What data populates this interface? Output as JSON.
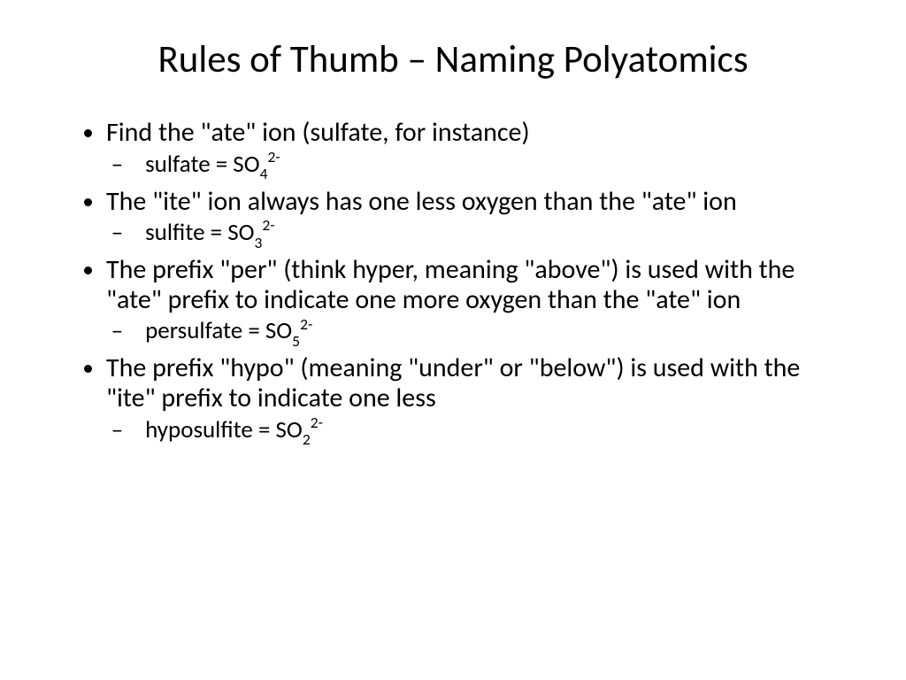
{
  "colors": {
    "background": "#ffffff",
    "text": "#000000"
  },
  "typography": {
    "family": "Calibri",
    "title_fontsize": 43,
    "body_fontsize": 30,
    "sub_fontsize": 27,
    "line_height": 1.12
  },
  "slide": {
    "title": "Rules of Thumb – Naming Polyatomics",
    "items": [
      {
        "text": "Find the \"ate\" ion (sulfate, for instance)",
        "sub": {
          "name": "sulfate",
          "base": "SO",
          "subscript": "4",
          "superscript": "2-"
        }
      },
      {
        "text": "The \"ite\" ion always has one less oxygen than the \"ate\" ion",
        "sub": {
          "name": "sulfite",
          "base": "SO",
          "subscript": "3",
          "superscript": "2-"
        }
      },
      {
        "text": "The prefix \"per\" (think hyper, meaning \"above\") is used with the \"ate\" prefix to indicate one more oxygen than the \"ate\" ion",
        "sub": {
          "name": "persulfate",
          "base": "SO",
          "subscript": "5",
          "superscript": "2-"
        }
      },
      {
        "text": "The prefix \"hypo\" (meaning \"under\" or \"below\") is used with the \"ite\" prefix to indicate one less",
        "sub": {
          "name": "hyposulfite",
          "base": "SO",
          "subscript": "2",
          "superscript": "2-"
        }
      }
    ]
  }
}
